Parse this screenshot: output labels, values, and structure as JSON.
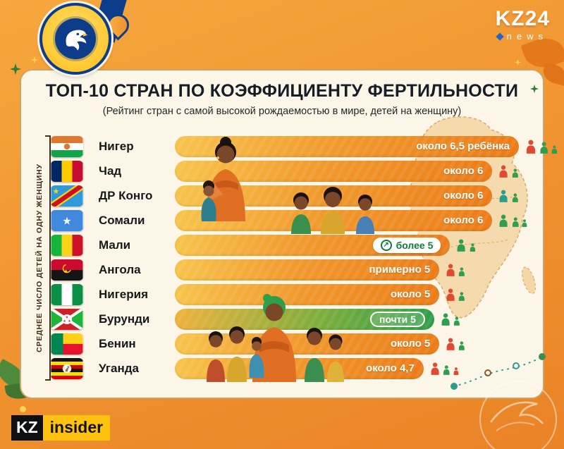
{
  "branding": {
    "kz24": "KZ24",
    "kz24_sub": "news",
    "insider_kz": "KZ",
    "insider_text": "insider"
  },
  "header": {
    "title": "ТОП-10 СТРАН ПО КОЭФФИЦИЕНТУ ФЕРТИЛЬНОСТИ",
    "subtitle": "(Рейтинг стран с самой высокой рождаемостью в мире, детей на женщину)"
  },
  "axis": {
    "label": "СРЕДНЕЕ ЧИСЛО ДЕТЕЙ НА ОДНУ ЖЕНЩИНУ"
  },
  "chart_data": {
    "type": "bar",
    "orientation": "horizontal",
    "title": "ТОП-10 СТРАН ПО КОЭФФИЦИЕНТУ ФЕРТИЛЬНОСТИ",
    "subtitle": "(Рейтинг стран с самой высокой рождаемостью в мире, детей на женщину)",
    "ylabel": "СРЕДНЕЕ ЧИСЛО ДЕТЕЙ НА ОДНУ ЖЕНЩИНУ",
    "unit": "детей на одну женщину",
    "xlim": [
      0,
      6.5
    ],
    "rows": [
      {
        "rank": 1,
        "country": "Нигер",
        "flag": "niger",
        "value": 6.5,
        "label": "около 6,5 ребёнка",
        "style": "orange",
        "family": [
          [
            "#e04a2f",
            20
          ],
          [
            "#2f9e4f",
            17
          ],
          [
            "#2f9e4f",
            12
          ]
        ]
      },
      {
        "rank": 2,
        "country": "Чад",
        "flag": "chad",
        "value": 6,
        "label": "около 6",
        "style": "orange",
        "family": [
          [
            "#e04a2f",
            18
          ],
          [
            "#2f9e4f",
            13
          ]
        ]
      },
      {
        "rank": 3,
        "country": "ДР Конго",
        "flag": "dr-congo",
        "value": 6,
        "label": "около 6",
        "style": "orange",
        "family": [
          [
            "#2a9d8f",
            18
          ],
          [
            "#2f9e4f",
            13
          ]
        ]
      },
      {
        "rank": 4,
        "country": "Сомали",
        "flag": "somalia",
        "value": 6,
        "label": "около 6",
        "style": "orange",
        "family": [
          [
            "#2f9e4f",
            18
          ],
          [
            "#2f9e4f",
            14
          ],
          [
            "#2f9e4f",
            11
          ]
        ]
      },
      {
        "rank": 5,
        "country": "Мали",
        "flag": "mali",
        "value": 5.2,
        "label": "более 5",
        "style": "pill",
        "family": [
          [
            "#2f9e4f",
            18
          ],
          [
            "#2f9e4f",
            12
          ]
        ]
      },
      {
        "rank": 6,
        "country": "Ангола",
        "flag": "angola",
        "value": 5,
        "label": "примерно 5",
        "style": "orange",
        "family": [
          [
            "#e04a2f",
            18
          ],
          [
            "#2f9e4f",
            13
          ]
        ]
      },
      {
        "rank": 7,
        "country": "Нигерия",
        "flag": "nigeria",
        "value": 5,
        "label": "около 5",
        "style": "orange",
        "family": [
          [
            "#e04a2f",
            18
          ],
          [
            "#2f9e4f",
            13
          ]
        ]
      },
      {
        "rank": 8,
        "country": "Бурунди",
        "flag": "burundi",
        "value": 4.9,
        "label": "почти 5",
        "style": "green",
        "family": [
          [
            "#2f9e4f",
            18
          ],
          [
            "#2f9e4f",
            13
          ]
        ]
      },
      {
        "rank": 9,
        "country": "Бенин",
        "flag": "benin",
        "value": 5,
        "label": "около 5",
        "style": "orange",
        "family": [
          [
            "#e04a2f",
            18
          ],
          [
            "#2f9e4f",
            13
          ]
        ]
      },
      {
        "rank": 10,
        "country": "Уганда",
        "flag": "uganda",
        "value": 4.7,
        "label": "около 4,7",
        "style": "orange",
        "family": [
          [
            "#e04a2f",
            18
          ],
          [
            "#2f9e4f",
            14
          ],
          [
            "#e04a2f",
            11
          ]
        ]
      }
    ]
  },
  "colors": {
    "background": "#f09230",
    "card": "#fcf6e8",
    "bar_start": "#f8c44c",
    "bar_end": "#ec7c18",
    "green": "#2f9e4a",
    "accent_blue": "#0d3d8a",
    "insider_yellow": "#ffc20e"
  }
}
